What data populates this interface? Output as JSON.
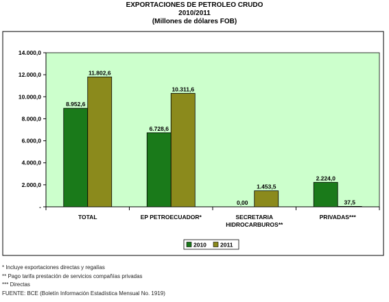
{
  "chart_data": {
    "type": "bar",
    "title": "EXPORTACIONES DE PETROLEO CRUDO",
    "subtitle": "2010/2011",
    "unit_note": "(Millones de dólares FOB)",
    "categories": [
      "TOTAL",
      "EP PETROECUADOR*",
      "SECRETARIA HIDROCARBUROS**",
      "PRIVADAS***"
    ],
    "category_lines": [
      [
        "TOTAL"
      ],
      [
        "EP PETROECUADOR*"
      ],
      [
        "SECRETARIA",
        "HIDROCARBUROS**"
      ],
      [
        "PRIVADAS***"
      ]
    ],
    "series": [
      {
        "name": "2010",
        "color": "#1a7a1a",
        "values": [
          8952.6,
          6728.6,
          0.0,
          2224.0
        ],
        "labels": [
          "8.952,6",
          "6.728,6",
          "0,00",
          "2.224,0"
        ]
      },
      {
        "name": "2011",
        "color": "#8b8a1c",
        "values": [
          11802.6,
          10311.6,
          1453.5,
          37.5
        ],
        "labels": [
          "11.802,6",
          "10.311,6",
          "1.453,5",
          "37,5"
        ]
      }
    ],
    "ylim": [
      0,
      14000
    ],
    "yticks": [
      0,
      2000,
      4000,
      6000,
      8000,
      10000,
      12000,
      14000
    ],
    "ytick_labels": [
      "-",
      "2.000,0",
      "4.000,0",
      "6.000,0",
      "8.000,0",
      "10.000,0",
      "12.000,0",
      "14.000,0"
    ],
    "plot_background": "#ccffcc",
    "grid": false,
    "legend_position": "bottom"
  },
  "notes": [
    "* Incluye exportaciones directas y regalías",
    "** Pago tarifa prestación de servicios compañías privadas",
    "*** Directas",
    "FUENTE: BCE (Boletín Información Estadística Mensual No. 1919)"
  ]
}
